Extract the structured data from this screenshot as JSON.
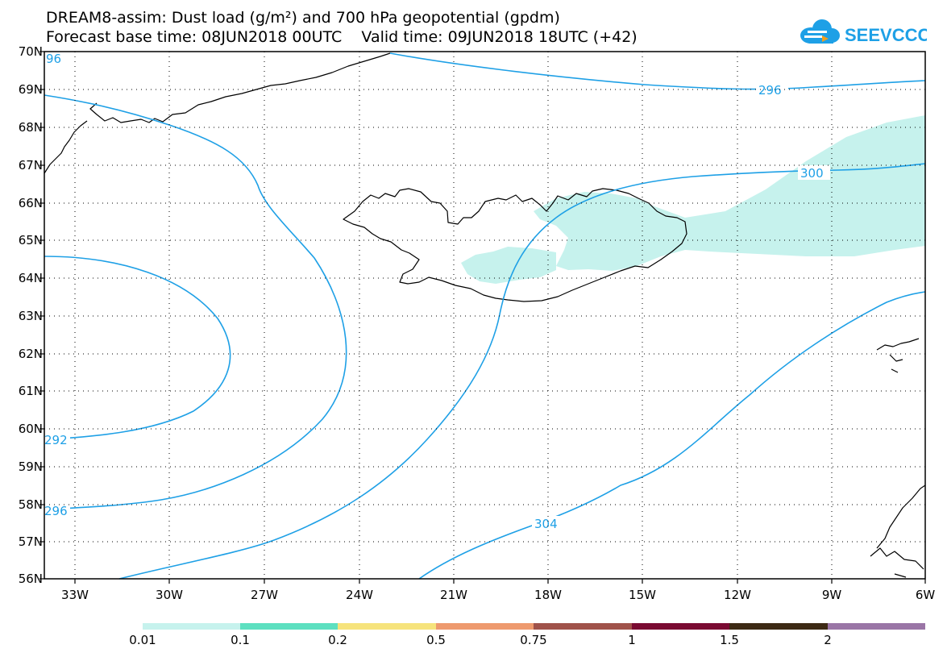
{
  "title_line1": "DREAM8-assim: Dust load (g/m²) and 700 hPa geopotential (gpdm)",
  "title_line2": "Forecast base time: 08JUN2018 00UTC    Valid time: 09JUN2018 18UTC (+42)",
  "logo_text": "SEEVCCC",
  "colors": {
    "contour": "#1ea0e6",
    "land_outline": "#000000",
    "dust_fill": "#c6f2ed",
    "grid": "#000000"
  },
  "lat_labels": [
    "70N",
    "69N",
    "68N",
    "67N",
    "66N",
    "65N",
    "64N",
    "63N",
    "62N",
    "61N",
    "60N",
    "59N",
    "58N",
    "57N",
    "56N"
  ],
  "lon_labels": [
    "33W",
    "30W",
    "27W",
    "24W",
    "21W",
    "18W",
    "15W",
    "12W",
    "9W",
    "6W"
  ],
  "contour_labels": [
    "96",
    "292",
    "296",
    "296",
    "300",
    "304"
  ],
  "colorbar": {
    "colors": [
      "#c6f2ed",
      "#5de0c0",
      "#f6e37c",
      "#ee9a6e",
      "#a0524a",
      "#7a0a32",
      "#3d2a14",
      "#9a75a6"
    ],
    "labels": [
      "0.01",
      "0.1",
      "0.2",
      "0.5",
      "0.75",
      "1",
      "1.5",
      "2"
    ]
  }
}
